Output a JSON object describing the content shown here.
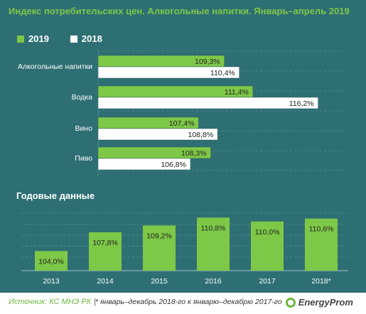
{
  "title": "Индекс потребительских цен. Алкогольные напитки. Январь–апрель 2019",
  "legend": [
    {
      "label": "2019",
      "color": "#7ec848"
    },
    {
      "label": "2018",
      "color": "#ffffff"
    }
  ],
  "chart_data": [
    {
      "type": "bar",
      "orientation": "horizontal",
      "categories": [
        "Алкогольные напитки",
        "Водка",
        "Вино",
        "Пиво"
      ],
      "series": [
        {
          "name": "2019",
          "values": [
            109.3,
            111.4,
            107.4,
            108.3
          ],
          "labels": [
            "109,3%",
            "111,4%",
            "107,4%",
            "108,3%"
          ],
          "color": "#7ec848"
        },
        {
          "name": "2018",
          "values": [
            110.4,
            116.2,
            108.8,
            106.8
          ],
          "labels": [
            "110,4%",
            "116,2%",
            "108,8%",
            "106,8%"
          ],
          "color": "#ffffff"
        }
      ],
      "xlim": [
        100,
        118
      ],
      "grid": true,
      "legend_position": "top-left"
    },
    {
      "type": "bar",
      "title": "Годовые данные",
      "categories": [
        "2013",
        "2014",
        "2015",
        "2016",
        "2017",
        "2018*"
      ],
      "values": [
        104.0,
        107.8,
        109.2,
        110.8,
        110.0,
        110.6
      ],
      "labels": [
        "104,0%",
        "107,8%",
        "109,2%",
        "110,8%",
        "110,0%",
        "110,6%"
      ],
      "color": "#7ec848",
      "ylim": [
        100,
        112
      ],
      "grid": true
    }
  ],
  "footer": {
    "source": "Источник: КС МНЭ РК",
    "separator": "|",
    "note": "* январь–декабрь 2018-го к январю–декабрю 2017-го",
    "logo": "EnergyProm"
  },
  "colors": {
    "background": "#2e6f74",
    "accent": "#7ec848",
    "grid": "#4a8a8e"
  }
}
